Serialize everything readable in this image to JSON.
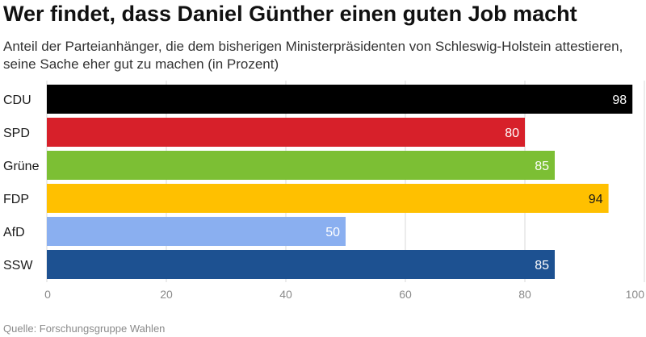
{
  "header": {
    "title": "Wer findet, dass Daniel Günther einen guten Job macht",
    "subtitle": "Anteil der Parteianhänger, die dem bisherigen Ministerpräsidenten von Schleswig-Holstein attestieren, seine Sache eher gut zu machen (in Prozent)"
  },
  "footer": {
    "source": "Quelle: Forschungsgruppe Wahlen"
  },
  "chart_data": {
    "type": "bar",
    "orientation": "horizontal",
    "title": "Wer findet, dass Daniel Günther einen guten Job macht",
    "subtitle": "Anteil der Parteianhänger, die dem bisherigen Ministerpräsidenten von Schleswig-Holstein attestieren, seine Sache eher gut zu machen (in Prozent)",
    "categories": [
      "CDU",
      "SPD",
      "Grüne",
      "FDP",
      "AfD",
      "SSW"
    ],
    "values": [
      98,
      80,
      85,
      94,
      50,
      85
    ],
    "colors": [
      "#000000",
      "#d7202a",
      "#7cbf34",
      "#ffc000",
      "#8aaff0",
      "#1d5191"
    ],
    "label_colors": [
      "#ffffff",
      "#ffffff",
      "#ffffff",
      "#1a1a1a",
      "#ffffff",
      "#ffffff"
    ],
    "xlim": [
      0,
      100
    ],
    "xticks": [
      0,
      20,
      40,
      60,
      80,
      100
    ],
    "grid": true,
    "legend": "none"
  }
}
